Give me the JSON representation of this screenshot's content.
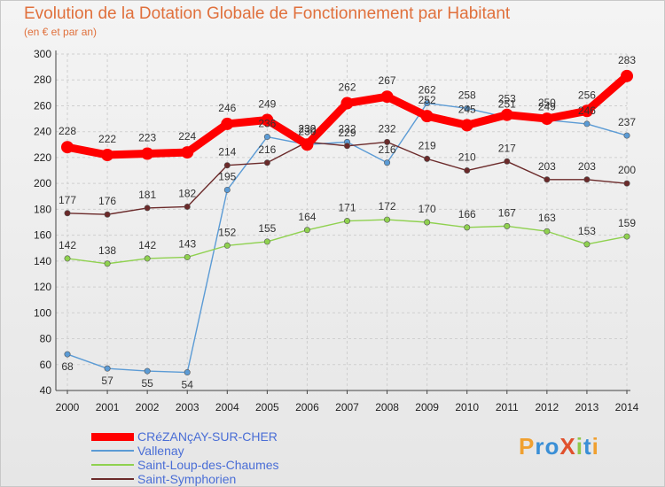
{
  "title": "Evolution de la Dotation Globale de Fonctionnement par Habitant",
  "subtitle": "(en € et par an)",
  "logo": "ProXiti",
  "colors": {
    "accent": "#e0703c",
    "legend_text": "#4a6ed6",
    "grid": "#cfcfcf",
    "axis": "#444444"
  },
  "chart_data": {
    "type": "line",
    "title": "Evolution de la Dotation Globale de Fonctionnement par Habitant",
    "subtitle": "(en € et par an)",
    "x": [
      "2000",
      "2001",
      "2002",
      "2003",
      "2004",
      "2005",
      "2006",
      "2007",
      "2008",
      "2009",
      "2010",
      "2011",
      "2012",
      "2013",
      "2014"
    ],
    "ylim": [
      40,
      300
    ],
    "yticks": [
      40,
      60,
      80,
      100,
      120,
      140,
      160,
      180,
      200,
      220,
      240,
      260,
      280,
      300
    ],
    "grid": true,
    "legend_position": "bottom-left",
    "series": [
      {
        "name": "CRéZANçAY-SUR-CHER",
        "color": "#ff0000",
        "values": [
          228,
          222,
          223,
          224,
          246,
          249,
          230,
          262,
          267,
          252,
          245,
          253,
          250,
          256,
          283
        ]
      },
      {
        "name": "Vallenay",
        "color": "#5b9bd5",
        "values": [
          68,
          57,
          55,
          54,
          195,
          236,
          230,
          232,
          216,
          262,
          258,
          251,
          249,
          246,
          237
        ]
      },
      {
        "name": "Saint-Loup-des-Chaumes",
        "color": "#8fd14f",
        "values": [
          142,
          138,
          142,
          143,
          152,
          155,
          164,
          171,
          172,
          170,
          166,
          167,
          163,
          153,
          159
        ]
      },
      {
        "name": "Saint-Symphorien",
        "color": "#6b2a2a",
        "values": [
          177,
          176,
          181,
          182,
          214,
          216,
          232,
          229,
          232,
          219,
          210,
          217,
          203,
          203,
          200
        ]
      }
    ]
  }
}
